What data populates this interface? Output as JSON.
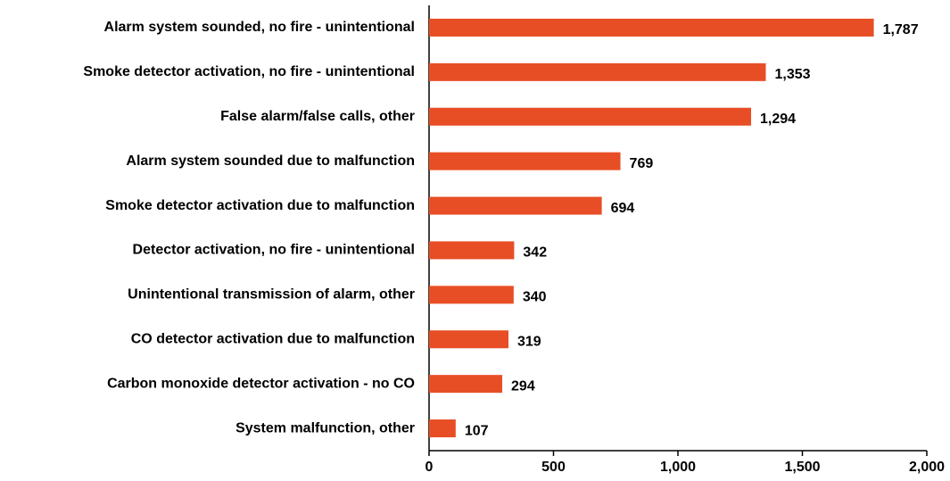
{
  "chart_data": {
    "type": "bar",
    "orientation": "horizontal",
    "categories": [
      "Alarm system sounded, no fire - unintentional",
      "Smoke detector activation, no fire - unintentional",
      "False alarm/false calls, other",
      "Alarm system sounded due to malfunction",
      "Smoke detector activation due to malfunction",
      "Detector activation, no fire - unintentional",
      "Unintentional transmission of alarm, other",
      "CO detector activation due to malfunction",
      "Carbon monoxide detector activation - no CO",
      "System malfunction, other"
    ],
    "values": [
      1787,
      1353,
      1294,
      769,
      694,
      342,
      340,
      319,
      294,
      107
    ],
    "value_labels": [
      "1,787",
      "1,353",
      "1,294",
      "769",
      "694",
      "342",
      "340",
      "319",
      "294",
      "107"
    ],
    "color": "#e84e25",
    "xlim": [
      0,
      2000
    ],
    "xticks": [
      0,
      500,
      {
        "value": 1000,
        "label": "1,000"
      },
      {
        "value": 1500,
        "label": "1,500"
      },
      {
        "value": 2000,
        "label": "2,000"
      }
    ]
  }
}
